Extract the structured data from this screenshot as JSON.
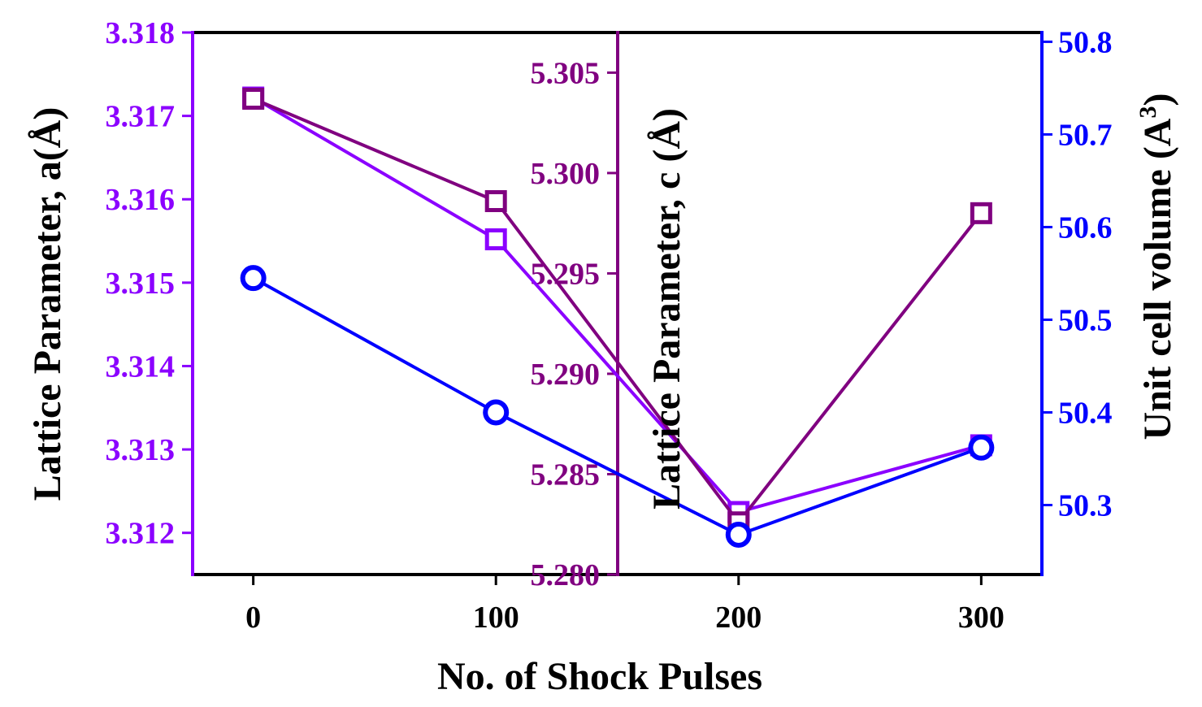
{
  "chart_data": {
    "type": "line",
    "xlabel": "No. of Shock Pulses",
    "x": [
      0,
      100,
      200,
      300
    ],
    "xticks": [
      "0",
      "100",
      "200",
      "300"
    ],
    "xlim": [
      -25,
      325
    ],
    "axes": {
      "a": {
        "label": "Lattice Parameter, a(Å)",
        "ylim": [
          3.3115,
          3.318
        ],
        "ticks": [
          3.312,
          3.313,
          3.314,
          3.315,
          3.316,
          3.317,
          3.318
        ],
        "tick_labels": [
          "3.312",
          "3.313",
          "3.314",
          "3.315",
          "3.316",
          "3.317",
          "3.318"
        ],
        "color": "#8b00ff"
      },
      "c": {
        "label": "Lattice Parameter, c (Å)",
        "ylim": [
          5.28,
          5.307
        ],
        "ticks": [
          5.28,
          5.285,
          5.29,
          5.295,
          5.3,
          5.305
        ],
        "tick_labels": [
          "5.280",
          "5.285",
          "5.290",
          "5.295",
          "5.300",
          "5.305"
        ],
        "color": "#800080"
      },
      "v": {
        "label_main": "Unit cell volume (A",
        "label_sup": "3",
        "label_end": ")",
        "ylim": [
          50.225,
          50.81
        ],
        "ticks": [
          50.3,
          50.4,
          50.5,
          50.6,
          50.7,
          50.8
        ],
        "tick_labels": [
          "50.3",
          "50.4",
          "50.5",
          "50.6",
          "50.7",
          "50.8"
        ],
        "color": "#0000ff"
      }
    },
    "series": [
      {
        "name": "Lattice Parameter a",
        "axis": "a",
        "marker": "square",
        "color": "#8b00ff",
        "values": [
          3.31722,
          3.31552,
          3.31225,
          3.31305
        ]
      },
      {
        "name": "Lattice Parameter c",
        "axis": "c",
        "marker": "square",
        "color": "#800080",
        "values": [
          5.3037,
          5.2986,
          5.2826,
          5.298
        ]
      },
      {
        "name": "Unit cell volume",
        "axis": "v",
        "marker": "circle",
        "color": "#0000ff",
        "values": [
          50.545,
          50.4,
          50.268,
          50.362
        ]
      }
    ]
  }
}
